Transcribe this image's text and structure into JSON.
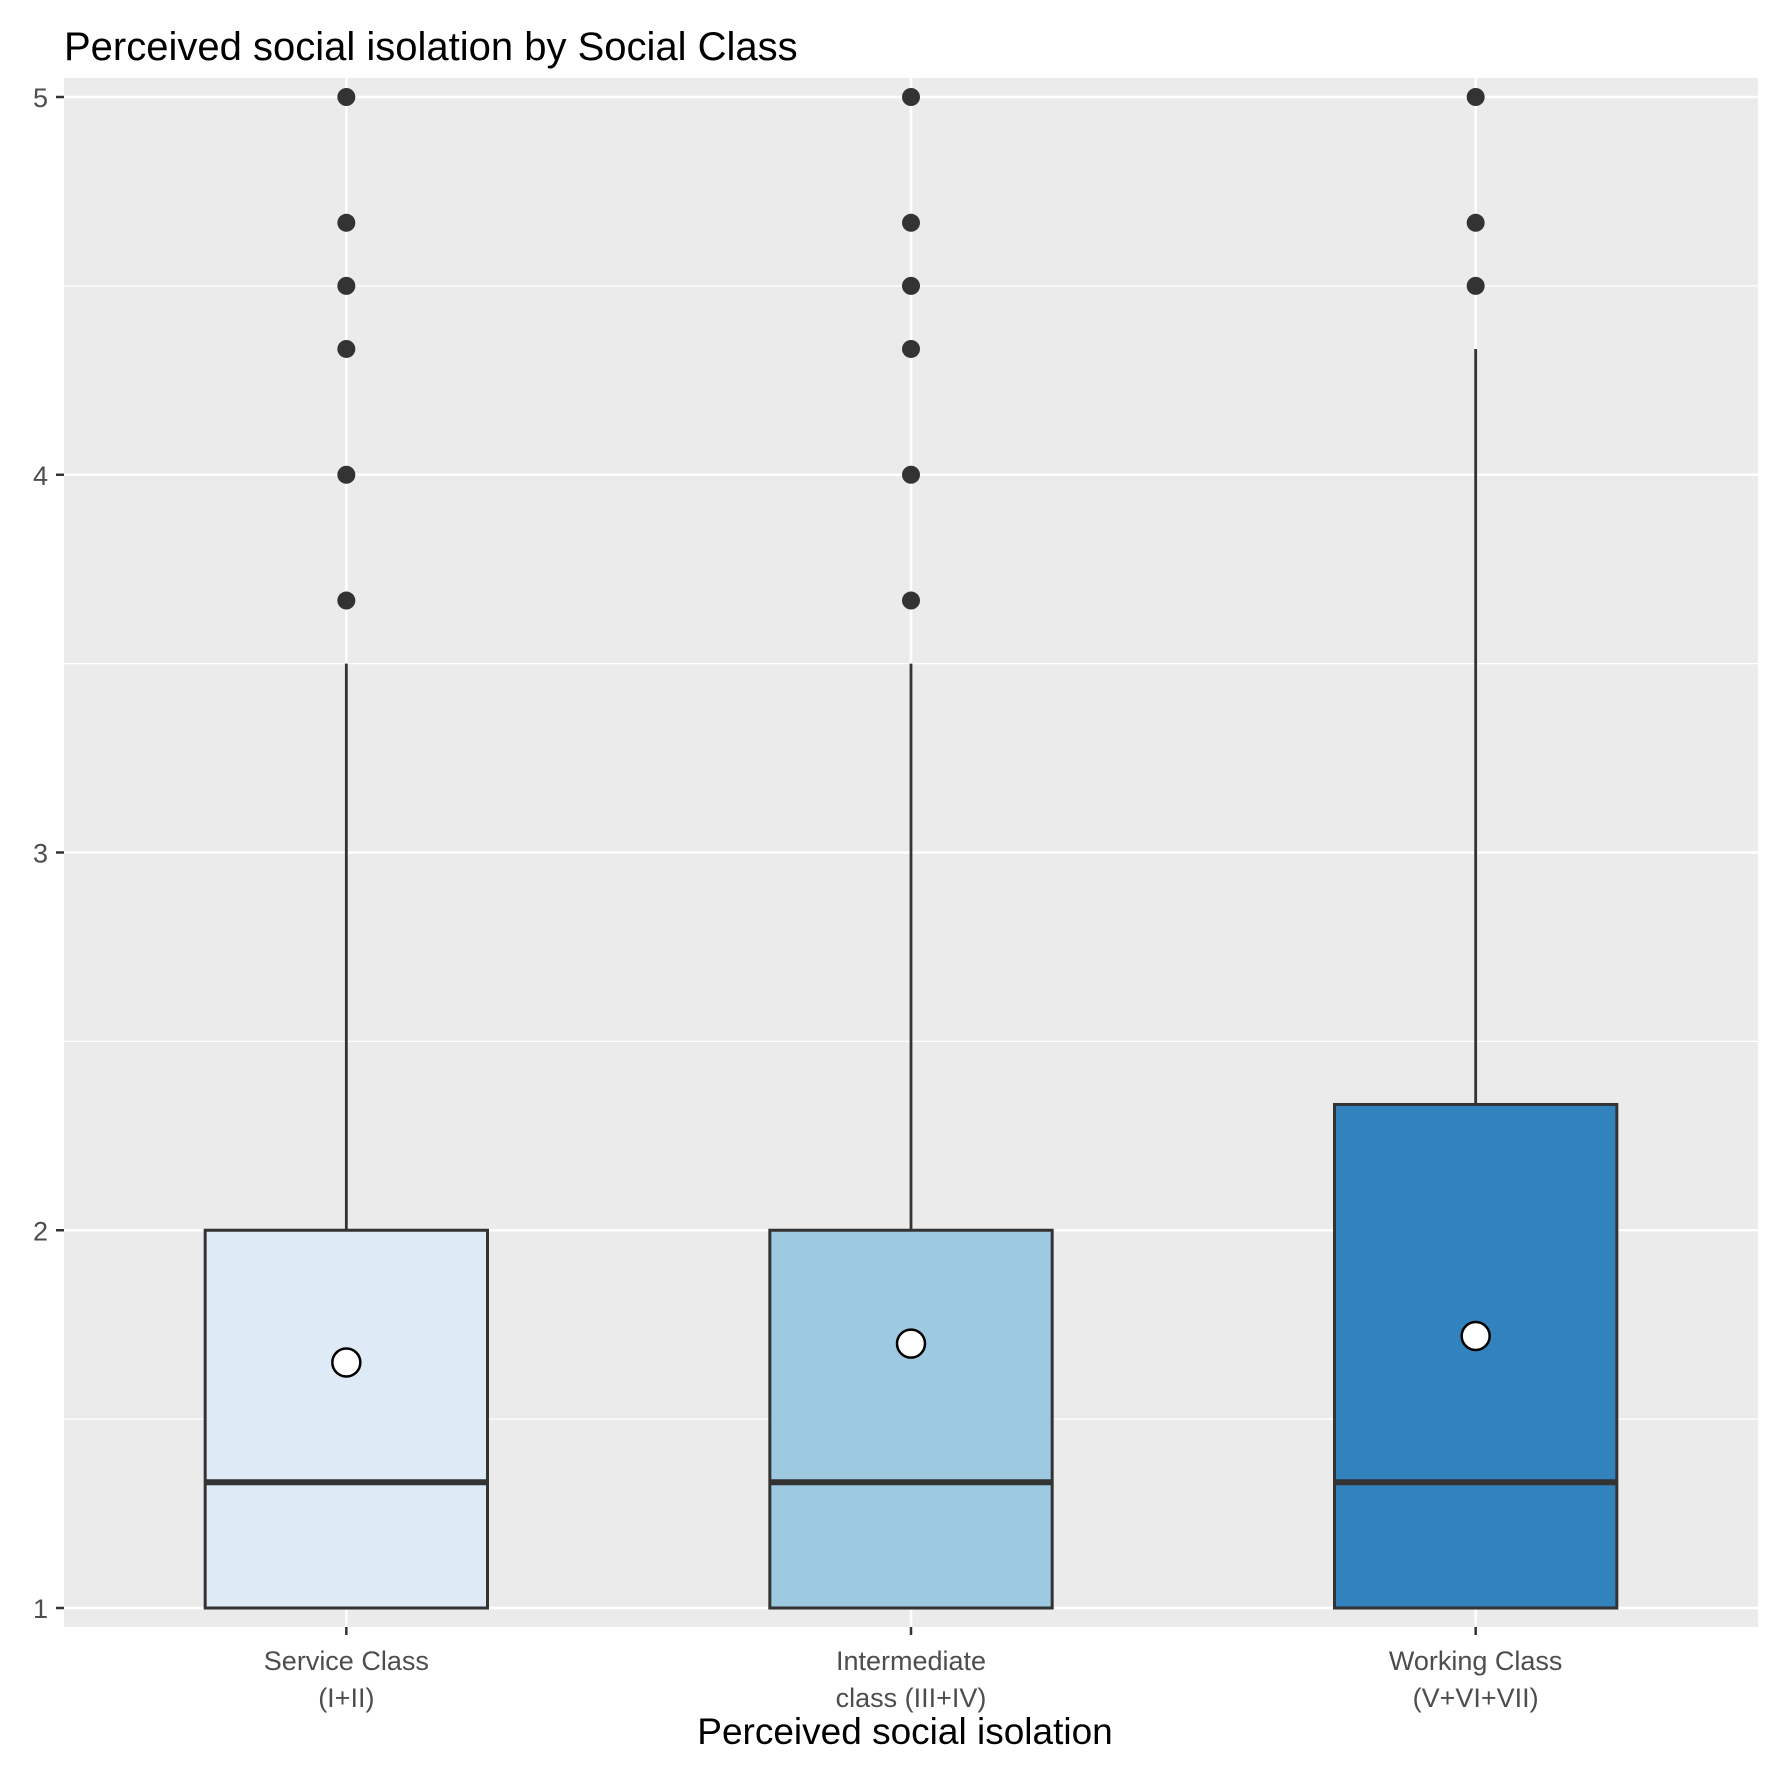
{
  "chart_data": {
    "type": "boxplot",
    "title": "Perceived social isolation by Social Class",
    "xlabel": "Perceived social isolation",
    "ylabel": "",
    "ylim": [
      1,
      5
    ],
    "yticks": [
      1,
      2,
      3,
      4,
      5
    ],
    "grid": true,
    "legend": "none",
    "colors": {
      "panel_background": "#ebebeb",
      "grid": "#ffffff",
      "outline": "#333333",
      "outlier": "#333333",
      "mean_marker": "#ffffff"
    },
    "categories": [
      [
        "Service Class",
        "(I+II)"
      ],
      [
        "Intermediate",
        "class (III+IV)"
      ],
      [
        "Working Class",
        "(V+VI+VII)"
      ]
    ],
    "series": [
      {
        "fill": "#deebf7",
        "min": 1,
        "q1": 1,
        "median": 1.333,
        "q3": 2,
        "max": 3.5,
        "mean": 1.65,
        "outliers": [
          3.667,
          4,
          4.333,
          4.5,
          4.667,
          5
        ]
      },
      {
        "fill": "#9ecae1",
        "min": 1,
        "q1": 1,
        "median": 1.333,
        "q3": 2,
        "max": 3.5,
        "mean": 1.7,
        "outliers": [
          3.667,
          4,
          4.333,
          4.5,
          4.667,
          5
        ]
      },
      {
        "fill": "#3182bd",
        "min": 1,
        "q1": 1,
        "median": 1.333,
        "q3": 2.333,
        "max": 4.333,
        "mean": 1.72,
        "outliers": [
          4.5,
          4.667,
          5
        ]
      }
    ]
  }
}
